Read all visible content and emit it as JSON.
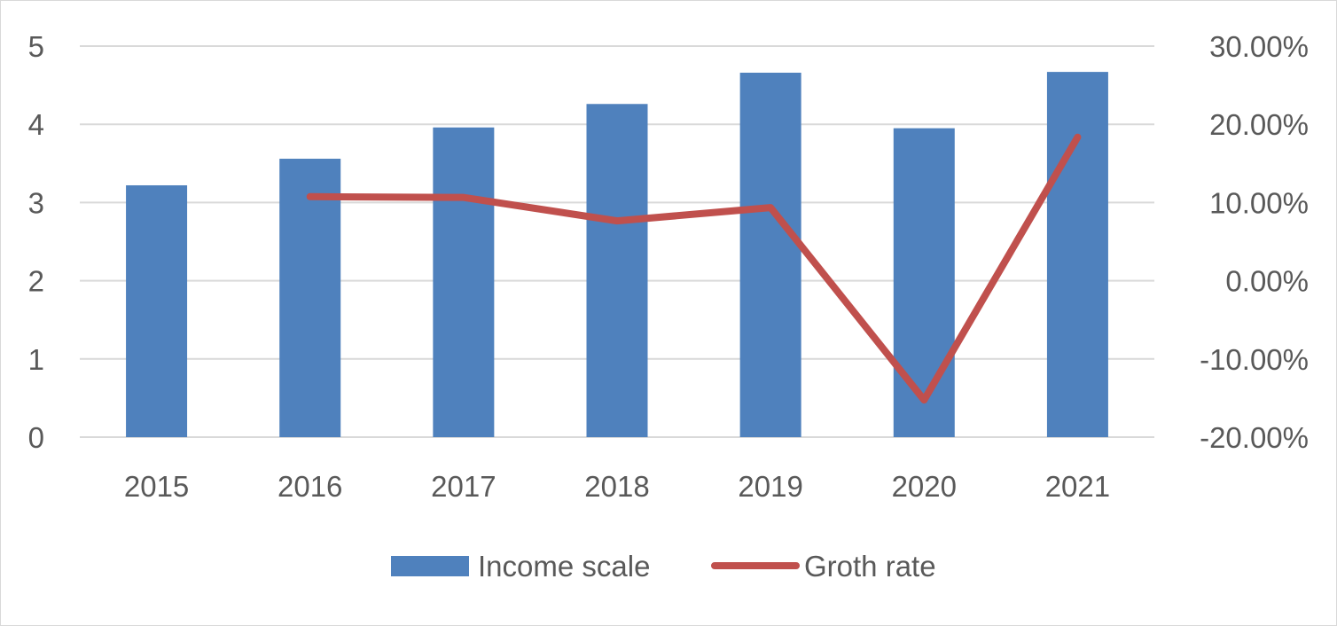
{
  "chart_data": {
    "type": "bar",
    "title": "",
    "categories": [
      "2015",
      "2016",
      "2017",
      "2018",
      "2019",
      "2020",
      "2021"
    ],
    "series": [
      {
        "name": "Income scale",
        "type": "bar",
        "axis": "left",
        "color": "#4f81bd",
        "values": [
          3.22,
          3.56,
          3.96,
          4.26,
          4.66,
          3.95,
          4.67
        ]
      },
      {
        "name": "Groth rate",
        "type": "line",
        "axis": "right",
        "color": "#c0504d",
        "values": [
          null,
          0.1075,
          0.1065,
          0.0765,
          0.0935,
          -0.1525,
          0.1835
        ]
      }
    ],
    "y_left": {
      "min": 0,
      "max": 5,
      "ticks": [
        "0",
        "1",
        "2",
        "3",
        "4",
        "5"
      ]
    },
    "y_right": {
      "min": -0.2,
      "max": 0.3,
      "ticks": [
        "-20.00%",
        "-10.00%",
        "0.00%",
        "10.00%",
        "20.00%",
        "30.00%"
      ]
    },
    "gridlines": true,
    "legend_position": "bottom"
  }
}
